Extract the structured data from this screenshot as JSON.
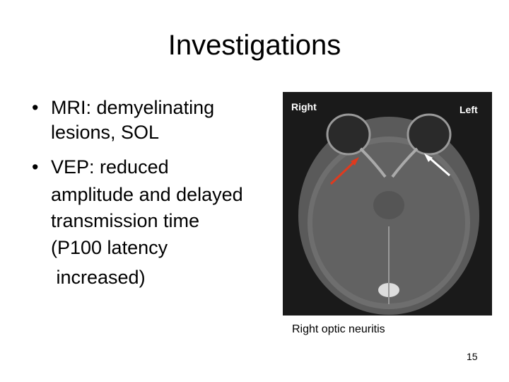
{
  "title": "Investigations",
  "bullets": [
    {
      "lines": [
        "MRI: demyelinating",
        "lesions, SOL"
      ]
    },
    {
      "lines": [
        "VEP: reduced",
        "amplitude and delayed",
        "transmission time",
        "(P100 latency",
        " increased)"
      ]
    }
  ],
  "image": {
    "label_right": "Right",
    "label_left": "Left"
  },
  "caption": "Right optic neuritis",
  "page_number": "15"
}
